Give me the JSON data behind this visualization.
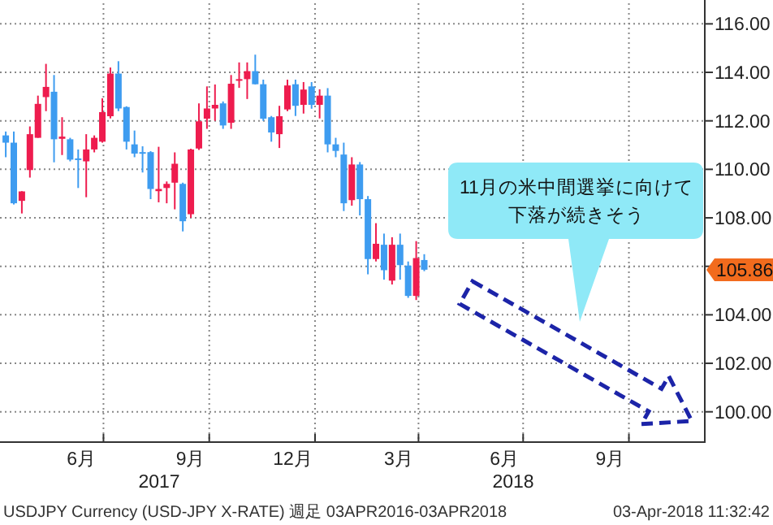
{
  "chart_data": {
    "type": "candlestick",
    "x": [
      "2017-04-07",
      "2017-04-14",
      "2017-04-21",
      "2017-04-28",
      "2017-05-05",
      "2017-05-12",
      "2017-05-19",
      "2017-05-26",
      "2017-06-02",
      "2017-06-09",
      "2017-06-16",
      "2017-06-23",
      "2017-06-30",
      "2017-07-07",
      "2017-07-14",
      "2017-07-21",
      "2017-07-28",
      "2017-08-04",
      "2017-08-11",
      "2017-08-18",
      "2017-08-25",
      "2017-09-01",
      "2017-09-08",
      "2017-09-15",
      "2017-09-22",
      "2017-09-29",
      "2017-10-06",
      "2017-10-13",
      "2017-10-20",
      "2017-10-27",
      "2017-11-03",
      "2017-11-10",
      "2017-11-17",
      "2017-11-24",
      "2017-12-01",
      "2017-12-08",
      "2017-12-15",
      "2017-12-22",
      "2017-12-29",
      "2018-01-05",
      "2018-01-12",
      "2018-01-19",
      "2018-01-26",
      "2018-02-02",
      "2018-02-09",
      "2018-02-16",
      "2018-02-23",
      "2018-03-02",
      "2018-03-09",
      "2018-03-16",
      "2018-03-23",
      "2018-03-30",
      "2018-04-06"
    ],
    "ohlc": [
      [
        111.4,
        111.56,
        110.5,
        111.1
      ],
      [
        111.1,
        111.56,
        108.55,
        108.6
      ],
      [
        108.7,
        109.1,
        108.18,
        109.09
      ],
      [
        109.97,
        111.77,
        109.66,
        111.45
      ],
      [
        111.3,
        113.04,
        111.3,
        112.7
      ],
      [
        112.98,
        114.35,
        112.4,
        113.4
      ],
      [
        113.2,
        113.89,
        110.29,
        111.24
      ],
      [
        111.26,
        112.15,
        110.59,
        111.35
      ],
      [
        111.24,
        111.3,
        110.33,
        110.4
      ],
      [
        110.45,
        110.82,
        109.23,
        110.4
      ],
      [
        110.33,
        111.45,
        108.85,
        110.82
      ],
      [
        110.82,
        111.4,
        110.7,
        111.3
      ],
      [
        111.14,
        112.93,
        111.1,
        112.36
      ],
      [
        112.19,
        114.2,
        112.1,
        113.95
      ],
      [
        113.95,
        114.46,
        112.4,
        112.51
      ],
      [
        112.57,
        112.6,
        110.82,
        111.14
      ],
      [
        111.03,
        111.6,
        110.5,
        110.65
      ],
      [
        110.71,
        110.95,
        109.87,
        110.65
      ],
      [
        110.71,
        110.75,
        108.77,
        109.19
      ],
      [
        109.1,
        110.93,
        108.64,
        109.19
      ],
      [
        109.23,
        109.5,
        108.6,
        109.4
      ],
      [
        109.45,
        110.7,
        108.35,
        110.23
      ],
      [
        109.4,
        109.45,
        107.44,
        107.86
      ],
      [
        108.15,
        110.85,
        108.0,
        110.82
      ],
      [
        110.86,
        112.72,
        110.8,
        111.98
      ],
      [
        112.09,
        113.42,
        111.67,
        112.51
      ],
      [
        112.51,
        113.5,
        112.0,
        112.66
      ],
      [
        112.72,
        112.8,
        111.67,
        111.81
      ],
      [
        111.92,
        113.89,
        111.67,
        113.53
      ],
      [
        113.66,
        114.41,
        113.36,
        113.72
      ],
      [
        113.72,
        114.41,
        112.9,
        114.05
      ],
      [
        114.05,
        114.73,
        113.5,
        113.51
      ],
      [
        113.51,
        113.7,
        112.0,
        112.09
      ],
      [
        112.15,
        112.2,
        111.14,
        111.52
      ],
      [
        111.45,
        112.62,
        110.88,
        112.19
      ],
      [
        112.47,
        113.7,
        112.4,
        113.46
      ],
      [
        113.51,
        113.7,
        112.2,
        112.62
      ],
      [
        112.66,
        113.6,
        112.3,
        113.29
      ],
      [
        113.42,
        113.6,
        112.5,
        112.66
      ],
      [
        112.66,
        113.3,
        112.1,
        113.04
      ],
      [
        113.04,
        113.35,
        110.7,
        111.03
      ],
      [
        111.03,
        111.3,
        110.5,
        110.76
      ],
      [
        110.61,
        111.1,
        108.28,
        108.6
      ],
      [
        108.73,
        110.5,
        108.5,
        110.2
      ],
      [
        110.2,
        110.3,
        108.1,
        108.77
      ],
      [
        108.77,
        108.9,
        105.67,
        106.3
      ],
      [
        106.3,
        107.78,
        106.2,
        106.93
      ],
      [
        106.89,
        107.35,
        105.45,
        105.84
      ],
      [
        105.41,
        107.2,
        105.25,
        106.89
      ],
      [
        106.89,
        107.35,
        105.45,
        106.05
      ],
      [
        106.03,
        106.2,
        104.7,
        104.78
      ],
      [
        104.78,
        107.04,
        104.61,
        106.34
      ],
      [
        106.26,
        106.5,
        105.8,
        105.86
      ]
    ],
    "colors": [
      "#3e9cf0",
      "#3e9cf0",
      "#ee1c4e",
      "#ee1c4e",
      "#ee1c4e",
      "#ee1c4e",
      "#3e9cf0",
      "#ee1c4e",
      "#3e9cf0",
      "#3e9cf0",
      "#ee1c4e",
      "#ee1c4e",
      "#ee1c4e",
      "#ee1c4e",
      "#3e9cf0",
      "#3e9cf0",
      "#3e9cf0",
      "#3e9cf0",
      "#3e9cf0",
      "#ee1c4e",
      "#ee1c4e",
      "#ee1c4e",
      "#3e9cf0",
      "#ee1c4e",
      "#ee1c4e",
      "#ee1c4e",
      "#ee1c4e",
      "#3e9cf0",
      "#ee1c4e",
      "#ee1c4e",
      "#ee1c4e",
      "#3e9cf0",
      "#3e9cf0",
      "#3e9cf0",
      "#ee1c4e",
      "#ee1c4e",
      "#3e9cf0",
      "#ee1c4e",
      "#3e9cf0",
      "#ee1c4e",
      "#3e9cf0",
      "#3e9cf0",
      "#3e9cf0",
      "#ee1c4e",
      "#3e9cf0",
      "#3e9cf0",
      "#ee1c4e",
      "#3e9cf0",
      "#ee1c4e",
      "#3e9cf0",
      "#3e9cf0",
      "#ee1c4e",
      "#3e9cf0"
    ],
    "xlim": [
      "2017-04-02",
      "2018-12-06"
    ],
    "xticks": [
      {
        "value": "2017-06-12",
        "label": "6月"
      },
      {
        "value": "2017-07-01",
        "label": null
      },
      {
        "value": "2017-09-15",
        "label": "9月"
      },
      {
        "value": "2017-10-01",
        "label": null
      },
      {
        "value": "2017-12-13",
        "label": "12月"
      },
      {
        "value": "2018-01-01",
        "label": null
      },
      {
        "value": "2018-03-15",
        "label": "3月"
      },
      {
        "value": "2018-04-01",
        "label": null
      },
      {
        "value": "2018-06-15",
        "label": "6月"
      },
      {
        "value": "2018-07-01",
        "label": null
      },
      {
        "value": "2018-09-15",
        "label": "9月"
      },
      {
        "value": "2018-10-01",
        "label": null
      }
    ],
    "ylim": [
      98.75,
      116.85
    ],
    "yticks": [
      {
        "value": 100,
        "label": "100.00"
      },
      {
        "value": 102,
        "label": "102.00"
      },
      {
        "value": 104,
        "label": "104.00"
      },
      {
        "value": 106,
        "label": null
      },
      {
        "value": 108,
        "label": "108.00"
      },
      {
        "value": 110,
        "label": "110.00"
      },
      {
        "value": 112,
        "label": "112.00"
      },
      {
        "value": 114,
        "label": "114.00"
      },
      {
        "value": 116,
        "label": "116.00"
      }
    ],
    "grid": true,
    "annotations": [
      "11月の米中間選挙に向けて",
      "下落が続きそう",
      "2017",
      "2018",
      "USDJPY Currency (USD-JPY X-RATE) 週足 03APR2016-03APR2018",
      "03-Apr-2018 11:32:42",
      "105.86"
    ]
  }
}
